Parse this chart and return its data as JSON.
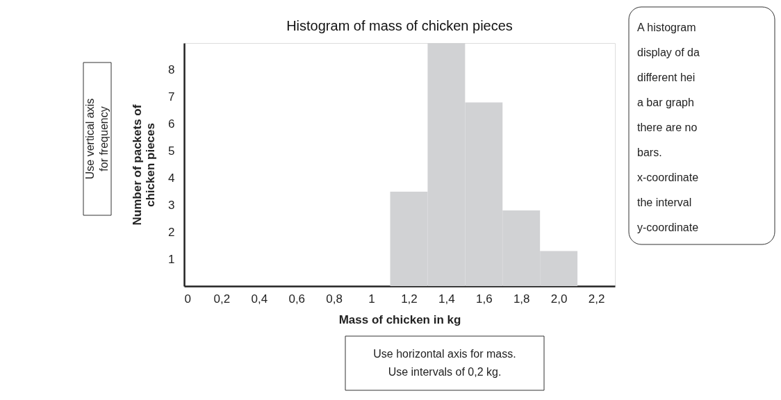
{
  "chart_data": {
    "type": "histogram",
    "title": "Histogram of mass of chicken pieces",
    "xlabel": "Mass of chicken in kg",
    "ylabel": "Number of packets of\nchicken pieces",
    "bins": [
      1.1,
      1.3,
      1.5,
      1.7,
      1.9,
      2.1
    ],
    "values": [
      3.5,
      9,
      6.8,
      2.8,
      1.3
    ],
    "color": "#d1d2d4",
    "xlim": [
      0,
      2.3
    ],
    "xticks": [
      0,
      {
        "value": 0.2,
        "label": "0,2"
      },
      {
        "value": 0.4,
        "label": "0,4"
      },
      {
        "value": 0.6,
        "label": "0,6"
      },
      {
        "value": 0.8,
        "label": "0,8"
      },
      1,
      {
        "value": 1.2,
        "label": "1,2"
      },
      {
        "value": 1.4,
        "label": "1,4"
      },
      {
        "value": 1.6,
        "label": "1,6"
      },
      {
        "value": 1.8,
        "label": "1,8"
      },
      {
        "value": 2.0,
        "label": "2,0"
      },
      {
        "value": 2.2,
        "label": "2,2"
      }
    ],
    "ylim": [
      0,
      9
    ],
    "yticks": [
      1,
      2,
      3,
      4,
      5,
      6,
      7,
      8
    ],
    "grid": false,
    "annotations": [
      "Use vertical axis\nfor frequency",
      "Use horizontal axis for mass.\nUse intervals of 0,2 kg.",
      "A histogram\ndisplay of da\ndifferent hei\na bar graph\nthere are no\nbars.\nx-coordinate\nthe interval\ny-coordinate"
    ]
  }
}
